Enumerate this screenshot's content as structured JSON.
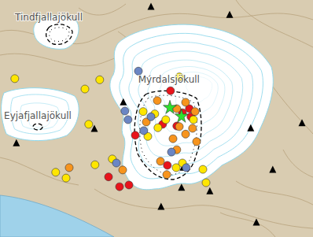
{
  "chart_data": {
    "type": "scatter",
    "xlim": [
      -19.8,
      -18.805
    ],
    "ylim": [
      63.42,
      63.83
    ],
    "tick_labels": false,
    "grid": false,
    "series": [
      {
        "color": "#e8141b",
        "marker": "circle",
        "x": [
          -19.258,
          -19.283,
          -19.22,
          -19.198,
          -19.193,
          -19.268,
          -19.37,
          -19.42,
          -19.39,
          -19.455,
          -19.238
        ],
        "y": [
          63.673,
          63.615,
          63.635,
          63.642,
          63.628,
          63.544,
          63.596,
          63.507,
          63.51,
          63.524,
          63.612
        ]
      },
      {
        "color": "#f7941d",
        "marker": "circle",
        "x": [
          -19.21,
          -19.238,
          -19.335,
          -19.18,
          -19.23,
          -19.188,
          -19.41,
          -19.29,
          -19.58,
          -19.3,
          -19.238,
          -19.25,
          -19.21,
          -19.175,
          -19.27
        ],
        "y": [
          63.653,
          63.642,
          63.619,
          63.637,
          63.611,
          63.608,
          63.536,
          63.551,
          63.54,
          63.656,
          63.571,
          63.59,
          63.598,
          63.585,
          63.528
        ]
      },
      {
        "color": "#ffe600",
        "marker": "circle",
        "x": [
          -19.753,
          -19.23,
          -19.483,
          -19.53,
          -19.518,
          -19.498,
          -19.443,
          -19.623,
          -19.59,
          -19.24,
          -19.33,
          -19.185,
          -19.345,
          -19.308,
          -19.298,
          -19.273,
          -19.155,
          -19.145,
          -19.22
        ],
        "y": [
          63.694,
          63.697,
          63.692,
          63.676,
          63.615,
          63.545,
          63.555,
          63.532,
          63.522,
          63.54,
          63.594,
          63.623,
          63.637,
          63.633,
          63.609,
          63.623,
          63.537,
          63.514,
          63.548
        ]
      },
      {
        "color": "#6b86c4",
        "marker": "circle",
        "x": [
          -19.36,
          -19.403,
          -19.393,
          -19.43,
          -19.32,
          -19.343,
          -19.208,
          -19.255
        ],
        "y": [
          63.707,
          63.638,
          63.623,
          63.548,
          63.628,
          63.604,
          63.54,
          63.567
        ]
      },
      {
        "color": "#2ee02e",
        "marker": "star",
        "x": [
          -19.26,
          -19.223
        ],
        "y": [
          63.645,
          63.63
        ]
      },
      {
        "color": "#000000",
        "marker": "triangle",
        "x": [
          -19.32,
          -19.07,
          -19.748,
          -19.408,
          -19.5,
          -19.218,
          -19.223,
          -19.288,
          -18.985,
          -19.003,
          -18.84,
          -18.933,
          -19.133
        ],
        "y": [
          63.819,
          63.805,
          63.583,
          63.654,
          63.608,
          63.541,
          63.506,
          63.473,
          63.446,
          63.609,
          63.618,
          63.537,
          63.5
        ]
      }
    ],
    "annotations": [
      {
        "text": "Tindfjallajökull",
        "x": -19.645,
        "y": 63.8
      },
      {
        "text": "Eyjafjallajökull",
        "x": -19.68,
        "y": 63.63
      },
      {
        "text": "Mýrdalsjökull",
        "x": -19.263,
        "y": 63.692
      }
    ]
  }
}
